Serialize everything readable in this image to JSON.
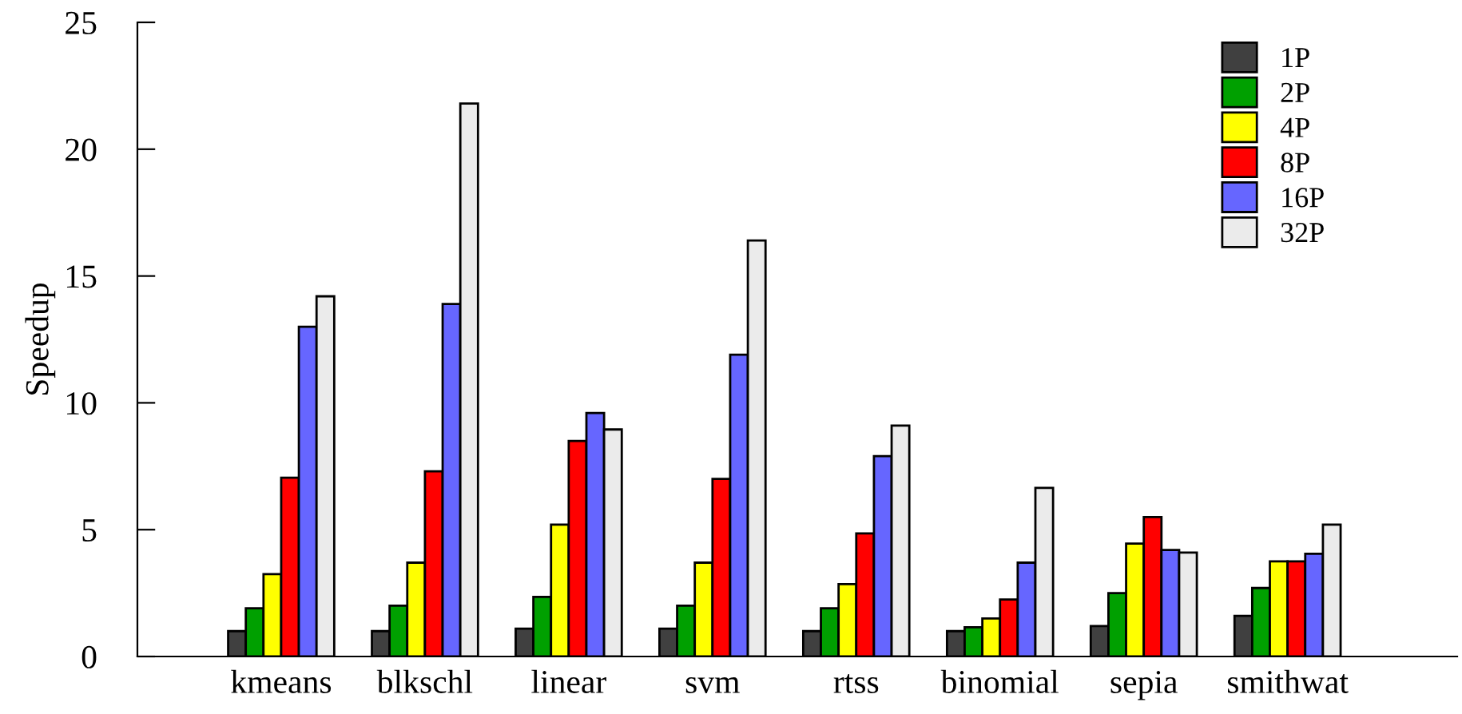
{
  "chart_data": {
    "type": "bar",
    "ylabel": "Speedup",
    "categories": [
      "kmeans",
      "blkschl",
      "linear",
      "svm",
      "rtss",
      "binomial",
      "sepia",
      "smithwat"
    ],
    "series": [
      {
        "name": "1P",
        "color": "#404040",
        "values": [
          1.0,
          1.0,
          1.1,
          1.1,
          1.0,
          1.0,
          1.2,
          1.6
        ]
      },
      {
        "name": "2P",
        "color": "#00a000",
        "values": [
          1.9,
          2.0,
          2.35,
          2.0,
          1.9,
          1.15,
          2.5,
          2.7
        ]
      },
      {
        "name": "4P",
        "color": "#ffff00",
        "values": [
          3.25,
          3.7,
          5.2,
          3.7,
          2.85,
          1.5,
          4.45,
          3.75
        ]
      },
      {
        "name": "8P",
        "color": "#ff0000",
        "values": [
          7.05,
          7.3,
          8.5,
          7.0,
          4.85,
          2.25,
          5.5,
          3.75
        ]
      },
      {
        "name": "16P",
        "color": "#6666ff",
        "values": [
          13.0,
          13.9,
          9.6,
          11.9,
          7.9,
          3.7,
          4.2,
          4.05
        ]
      },
      {
        "name": "32P",
        "color": "#ebebeb",
        "values": [
          14.2,
          21.8,
          8.95,
          16.4,
          9.1,
          6.65,
          4.1,
          5.2
        ]
      }
    ],
    "ylim": [
      0,
      25
    ],
    "yticks": [
      0,
      5,
      10,
      15,
      20,
      25
    ],
    "grid": false,
    "legend": "top right"
  }
}
